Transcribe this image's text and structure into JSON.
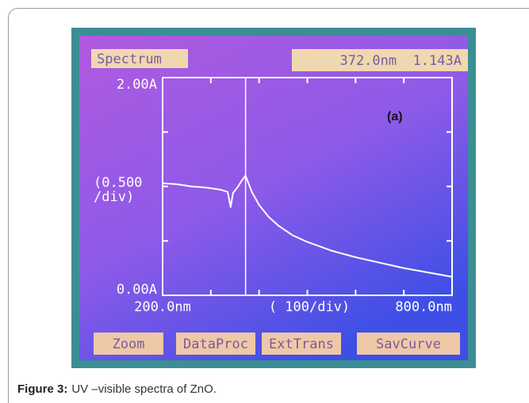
{
  "chart_data": {
    "type": "line",
    "annotation": "(a)",
    "y_scale_label": [
      "(0.500",
      "/div)"
    ],
    "x_scale_label": "( 100/div)",
    "x": [
      200,
      230,
      260,
      290,
      320,
      335,
      341,
      346,
      355,
      365,
      372,
      385,
      400,
      420,
      440,
      470,
      500,
      550,
      600,
      650,
      700,
      750,
      800
    ],
    "series": [
      {
        "color": "#ffffff",
        "values": [
          1.03,
          1.02,
          1.0,
          0.99,
          0.97,
          0.95,
          0.81,
          0.94,
          0.99,
          1.06,
          1.1,
          0.95,
          0.83,
          0.72,
          0.64,
          0.55,
          0.49,
          0.41,
          0.35,
          0.3,
          0.25,
          0.21,
          0.17
        ]
      }
    ],
    "cursor_x": 372.0,
    "xlim": [
      200,
      800
    ],
    "xticks": [
      {
        "value": 200,
        "label": "200.0nm"
      },
      {
        "value": 800,
        "label": "800.0nm"
      }
    ],
    "x_minor_ticks": [
      300,
      400,
      500,
      600,
      700
    ],
    "ylim": [
      0,
      2
    ],
    "yticks": [
      {
        "value": 0,
        "label": "0.00A"
      },
      {
        "value": 2,
        "label": "2.00A"
      }
    ],
    "y_minor_ticks": [
      0.5,
      1.0,
      1.5
    ]
  },
  "screen": {
    "title": "Spectrum",
    "readout": "372.0nm  1.143A",
    "buttons": [
      "Zoom",
      "DataProc",
      "ExtTrans",
      "SavCurve"
    ]
  },
  "caption": {
    "label": "Figure 3:",
    "text": "UV –visible spectra of ZnO."
  }
}
